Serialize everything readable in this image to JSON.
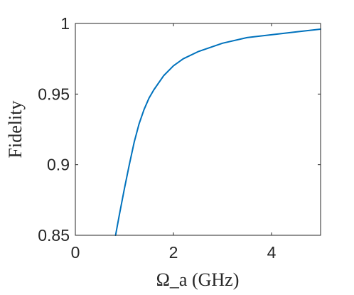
{
  "chart_data": {
    "type": "line",
    "title": "",
    "xlabel": "Ω_a (GHz)",
    "ylabel": "Fidelity",
    "xlim": [
      0,
      5
    ],
    "ylim": [
      0.85,
      1
    ],
    "xticks": [
      0,
      2,
      4
    ],
    "xtick_labels": [
      "0",
      "2",
      "4"
    ],
    "yticks": [
      0.85,
      0.9,
      0.95,
      1
    ],
    "ytick_labels": [
      "0.85",
      "0.9",
      "0.95",
      "1"
    ],
    "grid": false,
    "line_color": "#0072BD",
    "series": [
      {
        "x": [
          0.82,
          0.9,
          1.0,
          1.1,
          1.2,
          1.3,
          1.4,
          1.5,
          1.6,
          1.8,
          2.0,
          2.2,
          2.5,
          3.0,
          3.5,
          4.0,
          4.5,
          5.0
        ],
        "y": [
          0.849,
          0.865,
          0.883,
          0.9,
          0.916,
          0.929,
          0.939,
          0.947,
          0.953,
          0.963,
          0.97,
          0.975,
          0.98,
          0.986,
          0.99,
          0.992,
          0.994,
          0.996
        ]
      }
    ]
  }
}
